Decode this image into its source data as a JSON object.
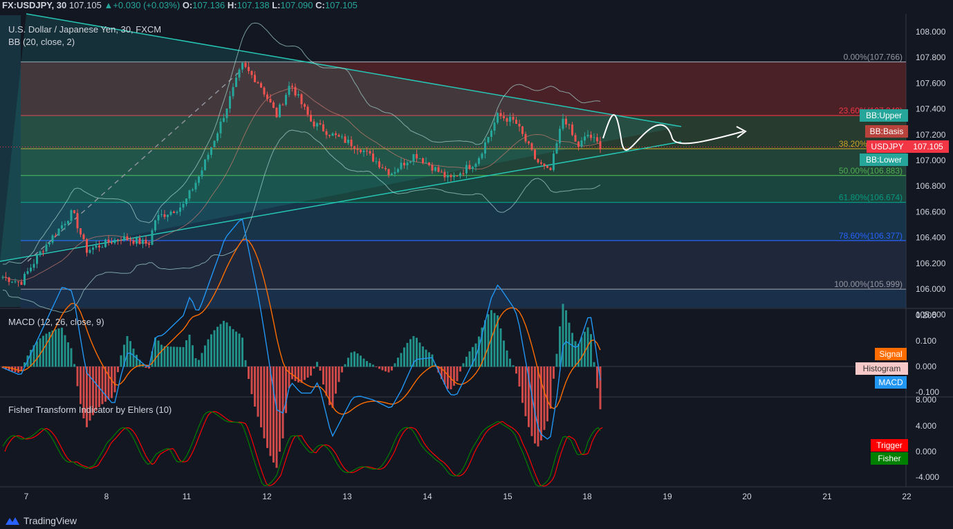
{
  "header": {
    "symbol": "FX:USDJPY, 30",
    "last": "107.105",
    "change": "+0.030 (+0.03%)",
    "open_label": "O:",
    "open": "107.136",
    "high_label": "H:",
    "high": "107.138",
    "low_label": "L:",
    "low": "107.090",
    "close_label": "C:",
    "close": "107.105",
    "change_color": "#26a69a"
  },
  "main_pane": {
    "title": "U.S. Dollar / Japanese Yen, 30, FXCM",
    "indicator": "BB (20, close, 2)",
    "price_axis": [
      "108.000",
      "107.800",
      "107.600",
      "107.400",
      "107.200",
      "107.000",
      "106.800",
      "106.600",
      "106.400",
      "106.200",
      "106.000",
      "105.800"
    ],
    "fib_levels": [
      {
        "label": "0.00%(107.766)",
        "price": 107.766,
        "color": "#9598a1"
      },
      {
        "label": "23.60%(107.349)",
        "price": 107.349,
        "color": "#f23645"
      },
      {
        "label": "38.20%(107.091)",
        "price": 107.091,
        "color": "#c9a227"
      },
      {
        "label": "50.00%(106.883)",
        "price": 106.883,
        "color": "#4caf50"
      },
      {
        "label": "61.80%(106.674)",
        "price": 106.674,
        "color": "#089981"
      },
      {
        "label": "78.60%(106.377)",
        "price": 106.377,
        "color": "#2962ff"
      },
      {
        "label": "100.00%(105.999)",
        "price": 105.999,
        "color": "#9598a1"
      }
    ],
    "tags": {
      "bb_upper": {
        "text": "BB:Upper",
        "color": "#26a69a",
        "price": 107.27
      },
      "bb_basis": {
        "text": "BB:Basis",
        "color": "#b7433c",
        "price": 107.18
      },
      "usdjpy": {
        "text": "USDJPY",
        "price_text": "107.105",
        "color": "#f23645",
        "price": 107.105
      },
      "bb_lower": {
        "text": "BB:Lower",
        "color": "#26a69a",
        "price": 106.93
      }
    }
  },
  "macd_pane": {
    "title": "MACD (12, 26, close, 9)",
    "axis": [
      "0.200",
      "0.100",
      "0.000",
      "-0.100"
    ],
    "tags": {
      "signal": {
        "text": "Signal",
        "color": "#ff6d00"
      },
      "histogram": {
        "text": "Histogram",
        "color": "#f7c9c9"
      },
      "macd": {
        "text": "MACD",
        "color": "#2196f3"
      }
    }
  },
  "fisher_pane": {
    "title": "Fisher Transform Indicator by Ehlers (10)",
    "axis": [
      "8.000",
      "4.000",
      "0.000",
      "-4.000"
    ],
    "tags": {
      "trigger": {
        "text": "Trigger",
        "color": "#ff0000"
      },
      "fisher": {
        "text": "Fisher",
        "color": "#008000"
      }
    }
  },
  "time_axis": [
    "7",
    "8",
    "11",
    "12",
    "13",
    "14",
    "15",
    "18",
    "19",
    "20",
    "21",
    "22"
  ],
  "branding": "TradingView",
  "chart_data": {
    "type": "line",
    "title": "U.S. Dollar / Japanese Yen, 30, FXCM",
    "x": [
      "7",
      "8",
      "11",
      "12",
      "13",
      "14",
      "15",
      "18"
    ],
    "series": [
      {
        "name": "USDJPY",
        "values": [
          106.1,
          106.3,
          106.55,
          107.74,
          107.2,
          106.95,
          107.4,
          107.105
        ]
      }
    ],
    "ylim": [
      105.75,
      108.05
    ],
    "fib_retracement": [
      107.766,
      107.349,
      107.091,
      106.883,
      106.674,
      106.377,
      105.999
    ],
    "grid": false
  }
}
